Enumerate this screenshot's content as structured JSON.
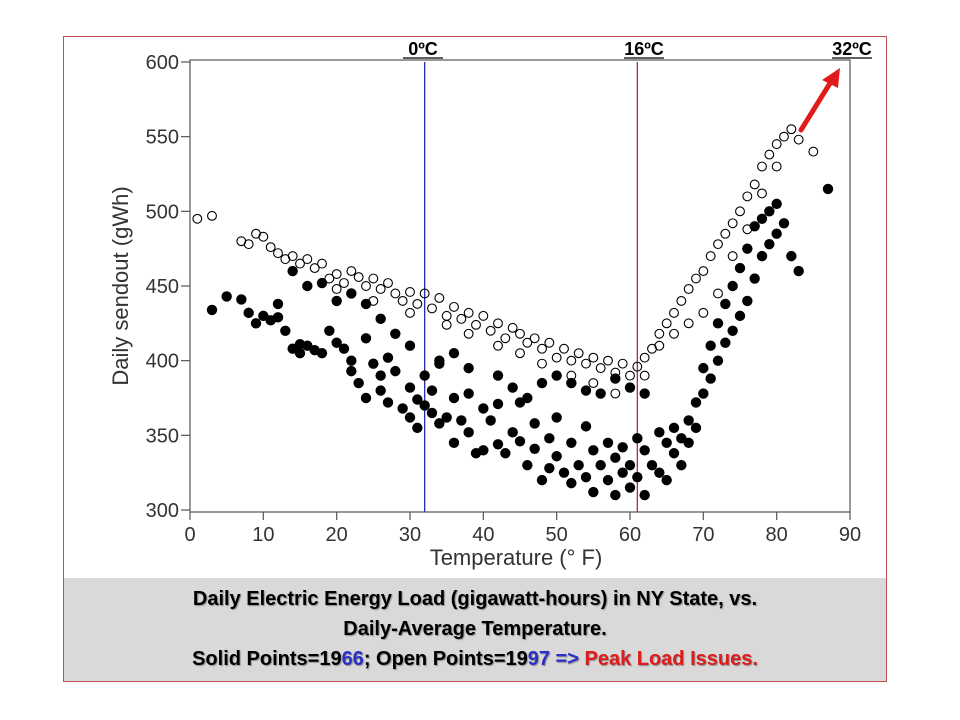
{
  "chart_data": {
    "type": "scatter",
    "title": "",
    "xlabel": "Temperature (° F)",
    "ylabel": "Daily sendout (gWh)",
    "xlim": [
      0,
      90
    ],
    "ylim": [
      300,
      600
    ],
    "xticks": [
      0,
      10,
      20,
      30,
      40,
      50,
      60,
      70,
      80,
      90
    ],
    "yticks": [
      300,
      350,
      400,
      450,
      500,
      550,
      600
    ],
    "grid": false,
    "reference_lines": [
      {
        "x": 32,
        "label": "0ºC",
        "color": "#1f2fb0"
      },
      {
        "x": 61,
        "label": "16ºC",
        "color": "#c0282d"
      },
      {
        "x": 88,
        "label": "32ºC",
        "color": "#000000"
      }
    ],
    "series": [
      {
        "name": "Solid Points=1966",
        "marker": "filled",
        "points": [
          [
            3,
            434
          ],
          [
            5,
            443
          ],
          [
            7,
            441
          ],
          [
            8,
            432
          ],
          [
            9,
            425
          ],
          [
            10,
            430
          ],
          [
            11,
            427
          ],
          [
            12,
            429
          ],
          [
            13,
            420
          ],
          [
            14,
            408
          ],
          [
            15,
            405
          ],
          [
            15,
            411
          ],
          [
            16,
            410
          ],
          [
            17,
            407
          ],
          [
            18,
            405
          ],
          [
            19,
            420
          ],
          [
            20,
            412
          ],
          [
            21,
            408
          ],
          [
            22,
            400
          ],
          [
            22,
            393
          ],
          [
            23,
            385
          ],
          [
            24,
            415
          ],
          [
            24,
            375
          ],
          [
            25,
            398
          ],
          [
            26,
            380
          ],
          [
            26,
            390
          ],
          [
            27,
            372
          ],
          [
            27,
            402
          ],
          [
            28,
            393
          ],
          [
            29,
            368
          ],
          [
            30,
            362
          ],
          [
            30,
            382
          ],
          [
            31,
            355
          ],
          [
            31,
            374
          ],
          [
            32,
            390
          ],
          [
            32,
            370
          ],
          [
            33,
            365
          ],
          [
            33,
            380
          ],
          [
            34,
            358
          ],
          [
            34,
            398
          ],
          [
            35,
            362
          ],
          [
            36,
            375
          ],
          [
            36,
            345
          ],
          [
            37,
            360
          ],
          [
            38,
            378
          ],
          [
            38,
            352
          ],
          [
            39,
            338
          ],
          [
            40,
            368
          ],
          [
            40,
            340
          ],
          [
            41,
            360
          ],
          [
            42,
            344
          ],
          [
            42,
            371
          ],
          [
            43,
            338
          ],
          [
            44,
            352
          ],
          [
            45,
            346
          ],
          [
            45,
            372
          ],
          [
            46,
            330
          ],
          [
            47,
            358
          ],
          [
            47,
            341
          ],
          [
            48,
            320
          ],
          [
            49,
            348
          ],
          [
            49,
            328
          ],
          [
            50,
            336
          ],
          [
            50,
            362
          ],
          [
            51,
            325
          ],
          [
            52,
            345
          ],
          [
            52,
            318
          ],
          [
            53,
            330
          ],
          [
            54,
            356
          ],
          [
            54,
            322
          ],
          [
            55,
            340
          ],
          [
            55,
            312
          ],
          [
            56,
            330
          ],
          [
            57,
            345
          ],
          [
            57,
            320
          ],
          [
            58,
            335
          ],
          [
            58,
            310
          ],
          [
            59,
            342
          ],
          [
            59,
            325
          ],
          [
            60,
            330
          ],
          [
            60,
            315
          ],
          [
            61,
            348
          ],
          [
            61,
            322
          ],
          [
            62,
            340
          ],
          [
            62,
            310
          ],
          [
            63,
            330
          ],
          [
            64,
            352
          ],
          [
            64,
            325
          ],
          [
            65,
            345
          ],
          [
            65,
            320
          ],
          [
            66,
            338
          ],
          [
            66,
            355
          ],
          [
            67,
            348
          ],
          [
            67,
            330
          ],
          [
            68,
            360
          ],
          [
            68,
            345
          ],
          [
            69,
            372
          ],
          [
            69,
            355
          ],
          [
            70,
            395
          ],
          [
            70,
            378
          ],
          [
            71,
            410
          ],
          [
            71,
            388
          ],
          [
            72,
            425
          ],
          [
            72,
            400
          ],
          [
            73,
            438
          ],
          [
            73,
            412
          ],
          [
            74,
            450
          ],
          [
            74,
            420
          ],
          [
            75,
            462
          ],
          [
            75,
            430
          ],
          [
            76,
            475
          ],
          [
            76,
            440
          ],
          [
            77,
            490
          ],
          [
            77,
            455
          ],
          [
            78,
            470
          ],
          [
            78,
            495
          ],
          [
            79,
            478
          ],
          [
            79,
            500
          ],
          [
            80,
            505
          ],
          [
            80,
            485
          ],
          [
            81,
            492
          ],
          [
            82,
            470
          ],
          [
            83,
            460
          ],
          [
            87,
            515
          ],
          [
            56,
            378
          ],
          [
            58,
            388
          ],
          [
            60,
            382
          ],
          [
            62,
            378
          ],
          [
            46,
            375
          ],
          [
            44,
            382
          ],
          [
            42,
            390
          ],
          [
            48,
            385
          ],
          [
            50,
            390
          ],
          [
            52,
            385
          ],
          [
            54,
            380
          ],
          [
            38,
            395
          ],
          [
            36,
            405
          ],
          [
            34,
            400
          ],
          [
            30,
            410
          ],
          [
            28,
            418
          ],
          [
            26,
            428
          ],
          [
            24,
            438
          ],
          [
            22,
            445
          ],
          [
            20,
            440
          ],
          [
            18,
            452
          ],
          [
            16,
            450
          ],
          [
            14,
            460
          ],
          [
            12,
            438
          ]
        ]
      },
      {
        "name": "Open Points=1997",
        "marker": "open",
        "points": [
          [
            1,
            495
          ],
          [
            3,
            497
          ],
          [
            7,
            480
          ],
          [
            8,
            478
          ],
          [
            9,
            485
          ],
          [
            10,
            483
          ],
          [
            11,
            476
          ],
          [
            12,
            472
          ],
          [
            13,
            468
          ],
          [
            14,
            470
          ],
          [
            15,
            465
          ],
          [
            16,
            468
          ],
          [
            17,
            462
          ],
          [
            18,
            465
          ],
          [
            19,
            455
          ],
          [
            20,
            458
          ],
          [
            21,
            452
          ],
          [
            22,
            460
          ],
          [
            23,
            456
          ],
          [
            24,
            450
          ],
          [
            25,
            455
          ],
          [
            26,
            448
          ],
          [
            27,
            452
          ],
          [
            28,
            445
          ],
          [
            29,
            440
          ],
          [
            30,
            446
          ],
          [
            31,
            438
          ],
          [
            32,
            445
          ],
          [
            33,
            435
          ],
          [
            34,
            442
          ],
          [
            35,
            430
          ],
          [
            36,
            436
          ],
          [
            37,
            428
          ],
          [
            38,
            432
          ],
          [
            39,
            424
          ],
          [
            40,
            430
          ],
          [
            41,
            420
          ],
          [
            42,
            425
          ],
          [
            43,
            415
          ],
          [
            44,
            422
          ],
          [
            45,
            418
          ],
          [
            46,
            412
          ],
          [
            47,
            415
          ],
          [
            48,
            408
          ],
          [
            49,
            412
          ],
          [
            50,
            402
          ],
          [
            51,
            408
          ],
          [
            52,
            400
          ],
          [
            53,
            405
          ],
          [
            54,
            398
          ],
          [
            55,
            402
          ],
          [
            56,
            395
          ],
          [
            57,
            400
          ],
          [
            58,
            392
          ],
          [
            59,
            398
          ],
          [
            60,
            390
          ],
          [
            61,
            396
          ],
          [
            62,
            402
          ],
          [
            63,
            408
          ],
          [
            64,
            418
          ],
          [
            65,
            425
          ],
          [
            66,
            432
          ],
          [
            67,
            440
          ],
          [
            68,
            448
          ],
          [
            69,
            455
          ],
          [
            70,
            460
          ],
          [
            71,
            470
          ],
          [
            72,
            478
          ],
          [
            73,
            485
          ],
          [
            74,
            492
          ],
          [
            75,
            500
          ],
          [
            76,
            510
          ],
          [
            77,
            518
          ],
          [
            78,
            530
          ],
          [
            79,
            538
          ],
          [
            80,
            545
          ],
          [
            81,
            550
          ],
          [
            82,
            555
          ],
          [
            83,
            548
          ],
          [
            85,
            540
          ],
          [
            58,
            378
          ],
          [
            55,
            385
          ],
          [
            52,
            390
          ],
          [
            48,
            398
          ],
          [
            45,
            405
          ],
          [
            42,
            410
          ],
          [
            38,
            418
          ],
          [
            35,
            424
          ],
          [
            30,
            432
          ],
          [
            25,
            440
          ],
          [
            20,
            448
          ],
          [
            70,
            432
          ],
          [
            72,
            445
          ],
          [
            74,
            470
          ],
          [
            76,
            488
          ],
          [
            78,
            512
          ],
          [
            80,
            530
          ],
          [
            66,
            418
          ],
          [
            68,
            425
          ],
          [
            64,
            410
          ],
          [
            62,
            390
          ]
        ]
      }
    ]
  },
  "caption": {
    "line1": "Daily Electric Energy Load (gigawatt-hours) in NY State, vs.",
    "line2": "Daily-Average Temperature.",
    "line3_a": "Solid Points=19",
    "line3_b": "66",
    "line3_c": "; Open Points=19",
    "line3_d": "97",
    "line3_e": " => ",
    "line3_f": "Peak Load Issues."
  },
  "colors": {
    "frame": "#c0504d",
    "caption_background": "#d9d9d9",
    "accent_blue": "#2a2fc8",
    "accent_red": "#e01b1b",
    "arrow": "#e01b1b"
  }
}
